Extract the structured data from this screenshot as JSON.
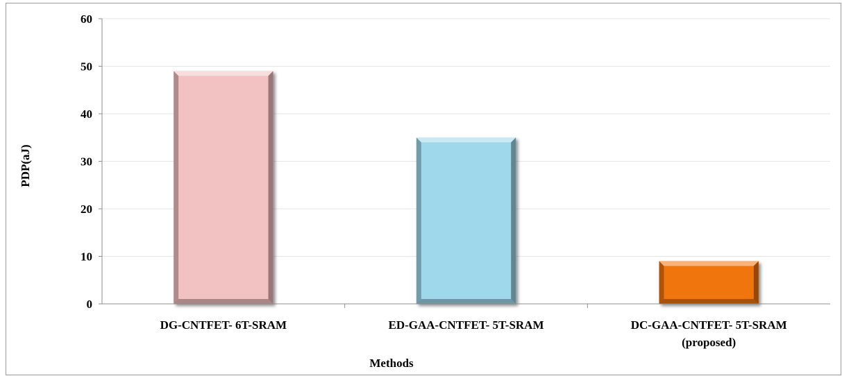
{
  "chart_data": {
    "type": "bar",
    "categories": [
      [
        "DG-CNTFET- 6T-SRAM"
      ],
      [
        "ED-GAA-CNTFET- 5T-SRAM"
      ],
      [
        "DC-GAA-CNTFET- 5T-SRAM",
        "(proposed)"
      ]
    ],
    "values": [
      49,
      35,
      9
    ],
    "bar_colors": [
      "#f2c2c2",
      "#9fd8ea",
      "#f07510"
    ],
    "xlabel": "Methods",
    "ylabel": "PDP(aJ)",
    "ylim": [
      0,
      60
    ],
    "yticks": [
      "0",
      "10",
      "20",
      "30",
      "40",
      "50",
      "60"
    ],
    "grid": true,
    "legend": "none"
  }
}
